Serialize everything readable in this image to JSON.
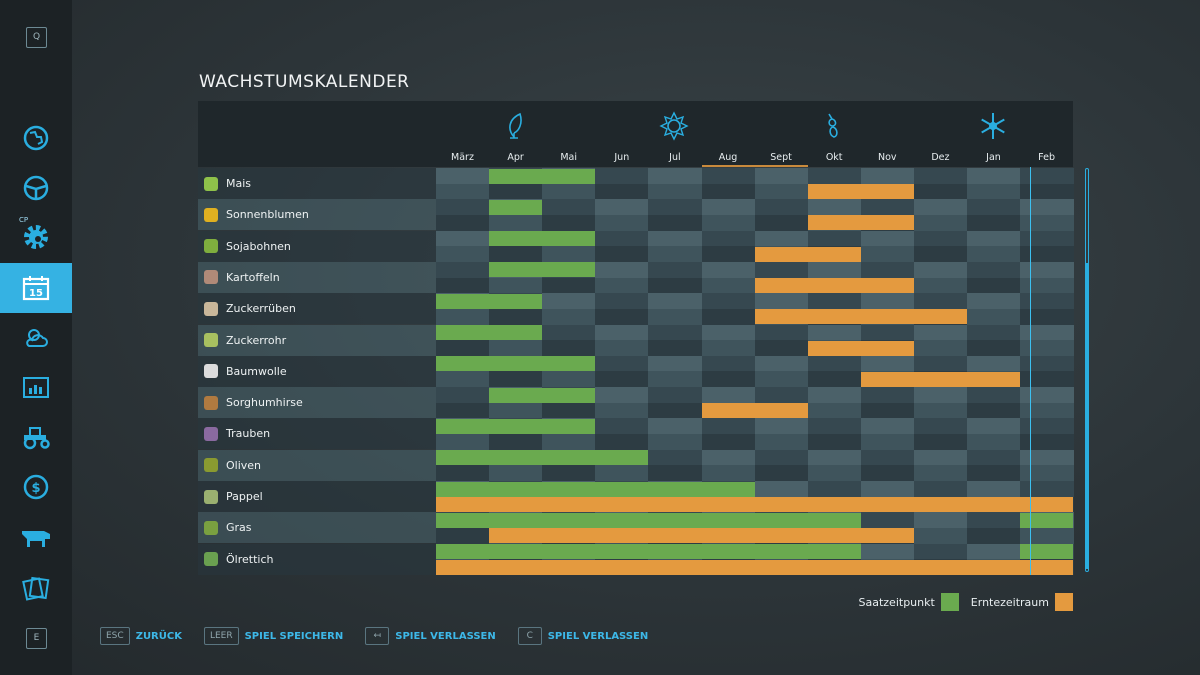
{
  "sidebar": {
    "top_key": "Q",
    "bottom_key": "E",
    "items": [
      {
        "icon": "map-icon",
        "active": false
      },
      {
        "icon": "steering-wheel-icon",
        "active": false
      },
      {
        "icon": "courseplay-gear-icon",
        "active": false,
        "badge": "CP"
      },
      {
        "icon": "calendar-icon",
        "active": true,
        "badge": "15"
      },
      {
        "icon": "weather-icon",
        "active": false
      },
      {
        "icon": "statistics-icon",
        "active": false
      },
      {
        "icon": "tractor-icon",
        "active": false
      },
      {
        "icon": "dollar-icon",
        "active": false
      },
      {
        "icon": "cow-icon",
        "active": false
      },
      {
        "icon": "contracts-icon",
        "active": false
      }
    ]
  },
  "title": "WACHSTUMSKALENDER",
  "seasons": [
    "spring-leaf-icon",
    "summer-sun-icon",
    "autumn-leaves-icon",
    "winter-snowflake-icon"
  ],
  "months": [
    "März",
    "Apr",
    "Mai",
    "Jun",
    "Jul",
    "Aug",
    "Sept",
    "Okt",
    "Nov",
    "Dez",
    "Jan",
    "Feb"
  ],
  "highlighted_months": [
    "Aug",
    "Sept"
  ],
  "current_month": "Feb",
  "crops": [
    {
      "name": "Mais",
      "icon_color": "#8fc24a",
      "sow": [
        [
          "Apr",
          "Mai"
        ]
      ],
      "harvest": [
        [
          "Okt",
          "Nov"
        ]
      ]
    },
    {
      "name": "Sonnenblumen",
      "icon_color": "#e0b020",
      "sow": [
        [
          "Apr",
          "Apr"
        ]
      ],
      "harvest": [
        [
          "Okt",
          "Nov"
        ]
      ]
    },
    {
      "name": "Sojabohnen",
      "icon_color": "#7fae3e",
      "sow": [
        [
          "Apr",
          "Mai"
        ]
      ],
      "harvest": [
        [
          "Sept",
          "Okt"
        ]
      ]
    },
    {
      "name": "Kartoffeln",
      "icon_color": "#b08a78",
      "sow": [
        [
          "Apr",
          "Mai"
        ]
      ],
      "harvest": [
        [
          "Sept",
          "Nov"
        ]
      ]
    },
    {
      "name": "Zuckerrüben",
      "icon_color": "#c9b79a",
      "sow": [
        [
          "März",
          "Apr"
        ]
      ],
      "harvest": [
        [
          "Sept",
          "Dez"
        ]
      ]
    },
    {
      "name": "Zuckerrohr",
      "icon_color": "#a8c060",
      "sow": [
        [
          "März",
          "Apr"
        ]
      ],
      "harvest": [
        [
          "Okt",
          "Nov"
        ]
      ]
    },
    {
      "name": "Baumwolle",
      "icon_color": "#dcdcdc",
      "sow": [
        [
          "März",
          "Mai"
        ]
      ],
      "harvest": [
        [
          "Nov",
          "Jan"
        ]
      ]
    },
    {
      "name": "Sorghumhirse",
      "icon_color": "#b07a40",
      "sow": [
        [
          "Apr",
          "Mai"
        ]
      ],
      "harvest": [
        [
          "Aug",
          "Sept"
        ]
      ]
    },
    {
      "name": "Trauben",
      "icon_color": "#8a6aa0",
      "sow": [
        [
          "März",
          "Mai"
        ]
      ],
      "harvest": []
    },
    {
      "name": "Oliven",
      "icon_color": "#8a9a30",
      "sow": [
        [
          "März",
          "Jun"
        ]
      ],
      "harvest": []
    },
    {
      "name": "Pappel",
      "icon_color": "#9ab070",
      "sow": [
        [
          "März",
          "Aug"
        ]
      ],
      "harvest": [
        [
          "März",
          "Feb"
        ]
      ]
    },
    {
      "name": "Gras",
      "icon_color": "#7aa040",
      "sow": [
        [
          "März",
          "Okt"
        ],
        [
          "Feb",
          "Feb"
        ]
      ],
      "harvest": [
        [
          "Apr",
          "Nov"
        ]
      ]
    },
    {
      "name": "Ölrettich",
      "icon_color": "#6aa050",
      "sow": [
        [
          "März",
          "Okt"
        ],
        [
          "Feb",
          "Feb"
        ]
      ],
      "harvest": [
        [
          "März",
          "Feb"
        ]
      ]
    }
  ],
  "colors": {
    "sow": "#6aaa4f",
    "harvest": "#e49a3f",
    "accent": "#2aaee0"
  },
  "legend": {
    "sow_label": "Saatzeitpunkt",
    "harvest_label": "Erntezeitraum"
  },
  "footer": [
    {
      "key": "ESC",
      "label": "ZURÜCK"
    },
    {
      "key": "LEER",
      "label": "SPIEL SPEICHERN"
    },
    {
      "key": "↤",
      "label": "SPIEL VERLASSEN"
    },
    {
      "key": "C",
      "label": "SPIEL VERLASSEN"
    }
  ]
}
